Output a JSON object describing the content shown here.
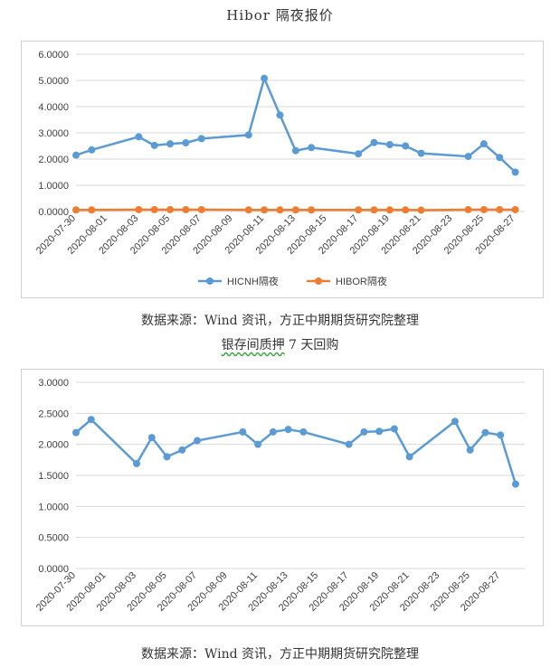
{
  "chart_data": [
    {
      "type": "line",
      "title": "Hibor 隔夜报价",
      "x": [
        "2020-07-30",
        "2020-07-31",
        "2020-08-03",
        "2020-08-04",
        "2020-08-05",
        "2020-08-06",
        "2020-08-07",
        "2020-08-10",
        "2020-08-11",
        "2020-08-12",
        "2020-08-13",
        "2020-08-14",
        "2020-08-17",
        "2020-08-18",
        "2020-08-19",
        "2020-08-20",
        "2020-08-21",
        "2020-08-24",
        "2020-08-25",
        "2020-08-26",
        "2020-08-27"
      ],
      "x_tick_labels": [
        "2020-07-30",
        "2020-08-01",
        "2020-08-03",
        "2020-08-05",
        "2020-08-07",
        "2020-08-09",
        "2020-08-11",
        "2020-08-13",
        "2020-08-15",
        "2020-08-17",
        "2020-08-19",
        "2020-08-21",
        "2020-08-23",
        "2020-08-25",
        "2020-08-27"
      ],
      "y_tick_labels": [
        "0.0000",
        "1.0000",
        "2.0000",
        "3.0000",
        "4.0000",
        "5.0000",
        "6.0000"
      ],
      "ylim": [
        0,
        6
      ],
      "grid": true,
      "legend": "bottom",
      "series": [
        {
          "name": "HICNH隔夜",
          "color": "#5b9bd5",
          "values": [
            2.15,
            2.35,
            2.85,
            2.52,
            2.58,
            2.62,
            2.78,
            2.92,
            5.08,
            3.68,
            2.32,
            2.44,
            2.2,
            2.63,
            2.55,
            2.5,
            2.22,
            2.1,
            2.58,
            2.06,
            1.5
          ]
        },
        {
          "name": "HIBOR隔夜",
          "color": "#ed7d31",
          "values": [
            0.06,
            0.06,
            0.07,
            0.07,
            0.07,
            0.07,
            0.07,
            0.06,
            0.06,
            0.06,
            0.06,
            0.06,
            0.06,
            0.06,
            0.06,
            0.06,
            0.05,
            0.07,
            0.07,
            0.07,
            0.07
          ]
        }
      ]
    },
    {
      "type": "line",
      "title": "银存间质押 7 天回购",
      "x": [
        "2020-07-30",
        "2020-07-31",
        "2020-08-03",
        "2020-08-04",
        "2020-08-05",
        "2020-08-06",
        "2020-08-07",
        "2020-08-10",
        "2020-08-11",
        "2020-08-12",
        "2020-08-13",
        "2020-08-14",
        "2020-08-17",
        "2020-08-18",
        "2020-08-19",
        "2020-08-20",
        "2020-08-21",
        "2020-08-24",
        "2020-08-25",
        "2020-08-26",
        "2020-08-27",
        "2020-08-28"
      ],
      "x_tick_labels": [
        "2020-07-30",
        "2020-08-01",
        "2020-08-03",
        "2020-08-05",
        "2020-08-07",
        "2020-08-09",
        "2020-08-11",
        "2020-08-13",
        "2020-08-15",
        "2020-08-17",
        "2020-08-19",
        "2020-08-21",
        "2020-08-23",
        "2020-08-25",
        "2020-08-27"
      ],
      "y_tick_labels": [
        "0.0000",
        "0.5000",
        "1.0000",
        "1.5000",
        "2.0000",
        "2.5000",
        "3.0000"
      ],
      "ylim": [
        0,
        3
      ],
      "grid": true,
      "series": [
        {
          "color": "#5b9bd5",
          "values": [
            2.19,
            2.4,
            1.69,
            2.11,
            1.8,
            1.91,
            2.06,
            2.2,
            2.0,
            2.2,
            2.24,
            2.2,
            2.0,
            2.2,
            2.21,
            2.25,
            1.8,
            2.37,
            1.91,
            2.19,
            2.15,
            1.36
          ]
        }
      ]
    }
  ],
  "captions": {
    "title1": "Hibor 隔夜报价",
    "source1": "数据来源：Wind 资讯，方正中期期货研究院整理",
    "title2_prefix": "银存间质押",
    "title2_suffix": " 7 天回购",
    "source2": "数据来源：Wind 资讯，方正中期期货研究院整理"
  }
}
